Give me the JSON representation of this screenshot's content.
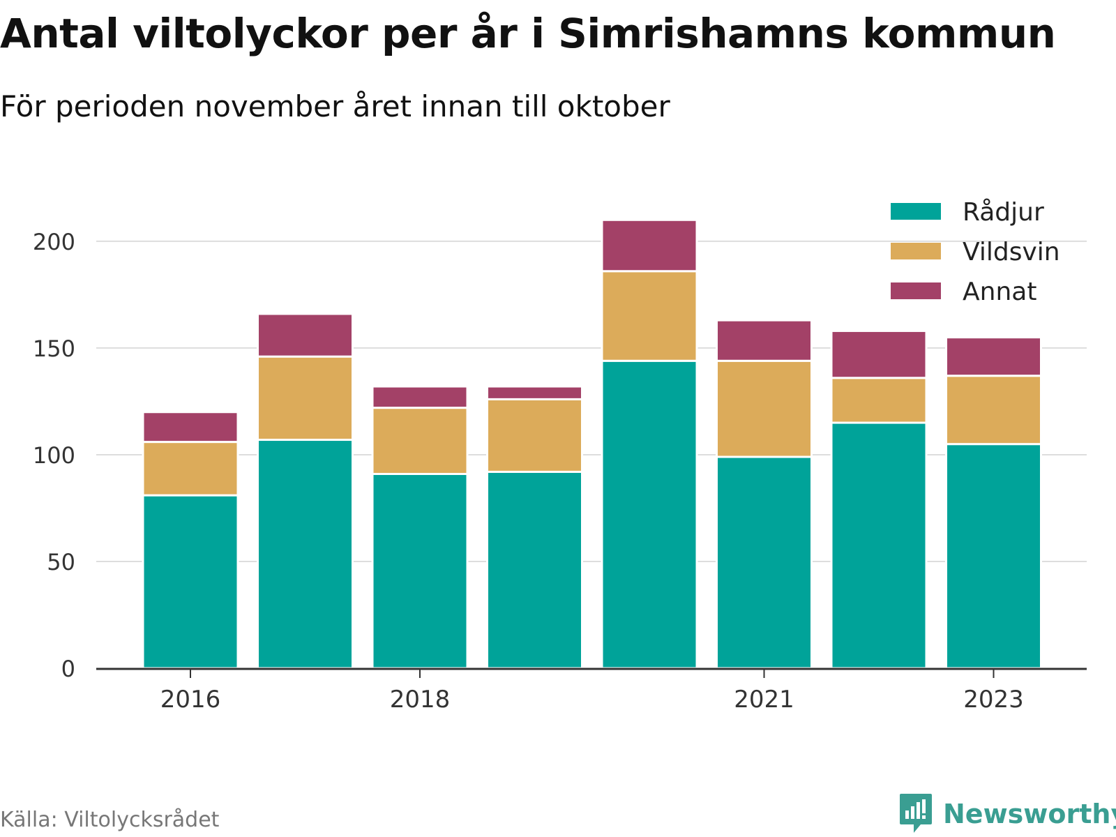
{
  "title": "Antal viltolyckor per år i Simrishamns kommun",
  "subtitle": "För perioden november året innan till oktober",
  "source": "Källa: Viltolycksrådet",
  "brand": "Newsworthy",
  "colors": {
    "radjur": "#00a399",
    "vildsvin": "#dcab5a",
    "annat": "#a34167",
    "grid": "#dddddd",
    "axis": "#333333",
    "brand": "#3a9e92"
  },
  "chart_data": {
    "type": "bar",
    "stacked": true,
    "categories": [
      "2016",
      "2017",
      "2018",
      "2019",
      "2020",
      "2021",
      "2022",
      "2023"
    ],
    "x_tick_labels": [
      "2016",
      "",
      "2018",
      "",
      "",
      "2021",
      "",
      "2023"
    ],
    "series": [
      {
        "name": "Rådjur",
        "color": "#00a399",
        "values": [
          81,
          107,
          91,
          92,
          144,
          99,
          115,
          105
        ]
      },
      {
        "name": "Vildsvin",
        "color": "#dcab5a",
        "values": [
          25,
          39,
          31,
          34,
          42,
          45,
          21,
          32
        ]
      },
      {
        "name": "Annat",
        "color": "#a34167",
        "values": [
          14,
          20,
          10,
          6,
          24,
          19,
          22,
          18
        ]
      }
    ],
    "y_ticks": [
      0,
      50,
      100,
      150,
      200
    ],
    "ylim": [
      0,
      215
    ],
    "grid": true,
    "legend_position": "top-right"
  }
}
